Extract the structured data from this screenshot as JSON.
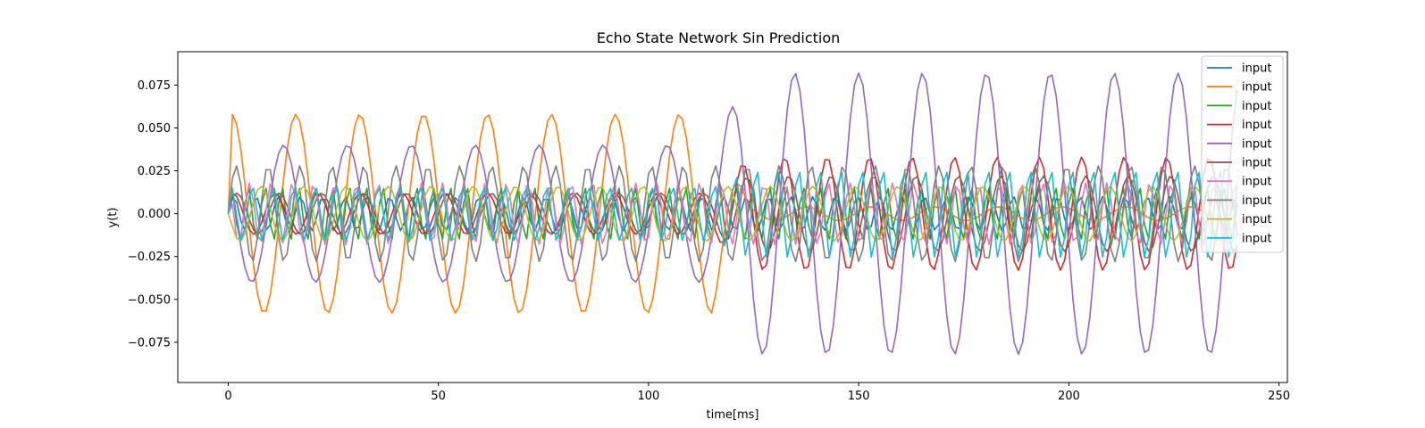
{
  "chart_data": {
    "type": "line",
    "title": "Echo State Network Sin Prediction",
    "xlabel": "time[ms]",
    "ylabel": "y(t)",
    "xlim": [
      -12,
      252
    ],
    "ylim": [
      -0.0985,
      0.0945
    ],
    "xticks": [
      0,
      50,
      100,
      150,
      200,
      250
    ],
    "xtick_labels": [
      "0",
      "50",
      "100",
      "150",
      "200",
      "250"
    ],
    "yticks": [
      0.075,
      0.05,
      0.025,
      0.0,
      -0.025,
      -0.05,
      -0.075
    ],
    "ytick_labels": [
      "0.075",
      "0.050",
      "0.025",
      "0.000",
      "−0.025",
      "−0.050",
      "−0.075"
    ],
    "grid": false,
    "legend_position": "upper right",
    "n_points": 241,
    "series": [
      {
        "name": "input",
        "color": "#1f77b4",
        "phase": 0.0,
        "segments": [
          [
            0,
            0.01
          ],
          [
            240,
            0.01
          ]
        ],
        "period": 5.3
      },
      {
        "name": "input",
        "color": "#ff7f0e",
        "phase": 1.2,
        "segments": [
          [
            0,
            0.058
          ],
          [
            115,
            0.058
          ],
          [
            124,
            0.004
          ],
          [
            240,
            0.004
          ]
        ],
        "period": 15.2
      },
      {
        "name": "input",
        "color": "#2ca02c",
        "phase": 0.4,
        "segments": [
          [
            0,
            0.016
          ],
          [
            240,
            0.016
          ]
        ],
        "period": 4.0
      },
      {
        "name": "input",
        "color": "#d62728",
        "phase": 0.9,
        "segments": [
          [
            0,
            0.012
          ],
          [
            115,
            0.012
          ],
          [
            124,
            0.033
          ],
          [
            240,
            0.033
          ]
        ],
        "period": 10.1
      },
      {
        "name": "input",
        "color": "#9467bd",
        "phase": 2.4,
        "segments": [
          [
            0,
            0.04
          ],
          [
            115,
            0.04
          ],
          [
            124,
            0.082
          ],
          [
            240,
            0.082
          ]
        ],
        "period": 15.2
      },
      {
        "name": "input",
        "color": "#8c564b",
        "phase": 0.3,
        "segments": [
          [
            0,
            0.012
          ],
          [
            115,
            0.012
          ],
          [
            124,
            0.022
          ],
          [
            240,
            0.022
          ]
        ],
        "period": 10.1
      },
      {
        "name": "input",
        "color": "#e377c2",
        "phase": 1.6,
        "segments": [
          [
            0,
            0.018
          ],
          [
            240,
            0.018
          ]
        ],
        "period": 5.1
      },
      {
        "name": "input",
        "color": "#7f7f7f",
        "phase": 0.0,
        "segments": [
          [
            0,
            0.028
          ],
          [
            240,
            0.028
          ]
        ],
        "period": 7.6
      },
      {
        "name": "input",
        "color": "#bcbd22",
        "phase": 3.0,
        "segments": [
          [
            0,
            0.016
          ],
          [
            240,
            0.016
          ]
        ],
        "period": 10.1
      },
      {
        "name": "input",
        "color": "#17becf",
        "phase": 0.7,
        "segments": [
          [
            0,
            0.016
          ],
          [
            115,
            0.016
          ],
          [
            124,
            0.026
          ],
          [
            240,
            0.026
          ]
        ],
        "period": 5.0
      }
    ]
  }
}
